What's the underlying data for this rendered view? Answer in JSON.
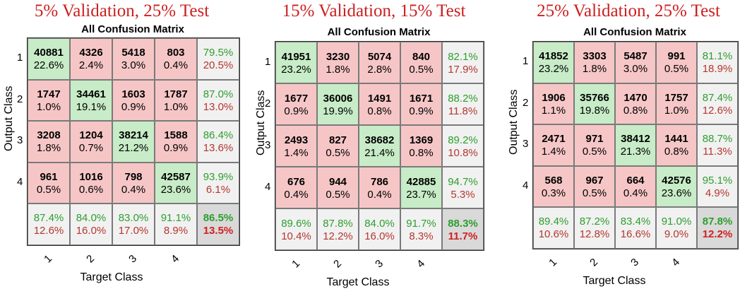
{
  "chart_data": [
    {
      "type": "table",
      "title": "5% Validation, 25% Test",
      "subtitle": "All Confusion Matrix",
      "ylabel": "Output Class",
      "xlabel": "Target Class",
      "row_labels": [
        "1",
        "2",
        "3",
        "4"
      ],
      "col_labels": [
        "1",
        "2",
        "3",
        "4"
      ],
      "counts": [
        [
          40881,
          4326,
          5418,
          803
        ],
        [
          1747,
          34461,
          1603,
          1787
        ],
        [
          3208,
          1204,
          38214,
          1588
        ],
        [
          961,
          1016,
          798,
          42587
        ]
      ],
      "cell_percents": [
        [
          "22.6%",
          "2.4%",
          "3.0%",
          "0.4%"
        ],
        [
          "1.0%",
          "19.1%",
          "0.9%",
          "1.0%"
        ],
        [
          "1.8%",
          "0.7%",
          "21.2%",
          "0.9%"
        ],
        [
          "0.5%",
          "0.6%",
          "0.4%",
          "23.6%"
        ]
      ],
      "row_summary": [
        [
          "79.5%",
          "20.5%"
        ],
        [
          "87.0%",
          "13.0%"
        ],
        [
          "86.4%",
          "13.6%"
        ],
        [
          "93.9%",
          "6.1%"
        ]
      ],
      "col_summary": [
        [
          "87.4%",
          "12.6%"
        ],
        [
          "84.0%",
          "16.0%"
        ],
        [
          "83.0%",
          "17.0%"
        ],
        [
          "91.1%",
          "8.9%"
        ]
      ],
      "overall": [
        "86.5%",
        "13.5%"
      ]
    },
    {
      "type": "table",
      "title": "15% Validation, 15% Test",
      "subtitle": "All Confusion Matrix",
      "ylabel": "Output Class",
      "xlabel": "Target Class",
      "row_labels": [
        "1",
        "2",
        "3",
        "4"
      ],
      "col_labels": [
        "1",
        "2",
        "3",
        "4"
      ],
      "counts": [
        [
          41951,
          3230,
          5074,
          840
        ],
        [
          1677,
          36006,
          1491,
          1671
        ],
        [
          2493,
          827,
          38682,
          1369
        ],
        [
          676,
          944,
          786,
          42885
        ]
      ],
      "cell_percents": [
        [
          "23.2%",
          "1.8%",
          "2.8%",
          "0.5%"
        ],
        [
          "0.9%",
          "19.9%",
          "0.8%",
          "0.9%"
        ],
        [
          "1.4%",
          "0.5%",
          "21.4%",
          "0.8%"
        ],
        [
          "0.4%",
          "0.5%",
          "0.4%",
          "23.7%"
        ]
      ],
      "row_summary": [
        [
          "82.1%",
          "17.9%"
        ],
        [
          "88.2%",
          "11.8%"
        ],
        [
          "89.2%",
          "10.8%"
        ],
        [
          "94.7%",
          "5.3%"
        ]
      ],
      "col_summary": [
        [
          "89.6%",
          "10.4%"
        ],
        [
          "87.8%",
          "12.2%"
        ],
        [
          "84.0%",
          "16.0%"
        ],
        [
          "91.7%",
          "8.3%"
        ]
      ],
      "overall": [
        "88.3%",
        "11.7%"
      ]
    },
    {
      "type": "table",
      "title": "25% Validation, 25% Test",
      "subtitle": "All Confusion Matrix",
      "ylabel": "Output Class",
      "xlabel": "Target Class",
      "row_labels": [
        "1",
        "2",
        "3",
        "4"
      ],
      "col_labels": [
        "1",
        "2",
        "3",
        "4"
      ],
      "counts": [
        [
          41852,
          3303,
          5487,
          991
        ],
        [
          1906,
          35766,
          1470,
          1757
        ],
        [
          2471,
          971,
          38412,
          1441
        ],
        [
          568,
          967,
          664,
          42576
        ]
      ],
      "cell_percents": [
        [
          "23.2%",
          "1.8%",
          "3.0%",
          "0.5%"
        ],
        [
          "1.1%",
          "19.8%",
          "0.8%",
          "1.0%"
        ],
        [
          "1.4%",
          "0.5%",
          "21.3%",
          "0.8%"
        ],
        [
          "0.3%",
          "0.5%",
          "0.4%",
          "23.6%"
        ]
      ],
      "row_summary": [
        [
          "81.1%",
          "18.9%"
        ],
        [
          "87.4%",
          "12.6%"
        ],
        [
          "88.7%",
          "11.3%"
        ],
        [
          "95.1%",
          "4.9%"
        ]
      ],
      "col_summary": [
        [
          "89.4%",
          "10.6%"
        ],
        [
          "87.2%",
          "12.8%"
        ],
        [
          "83.4%",
          "16.6%"
        ],
        [
          "91.0%",
          "9.0%"
        ]
      ],
      "overall": [
        "87.8%",
        "12.2%"
      ]
    }
  ]
}
